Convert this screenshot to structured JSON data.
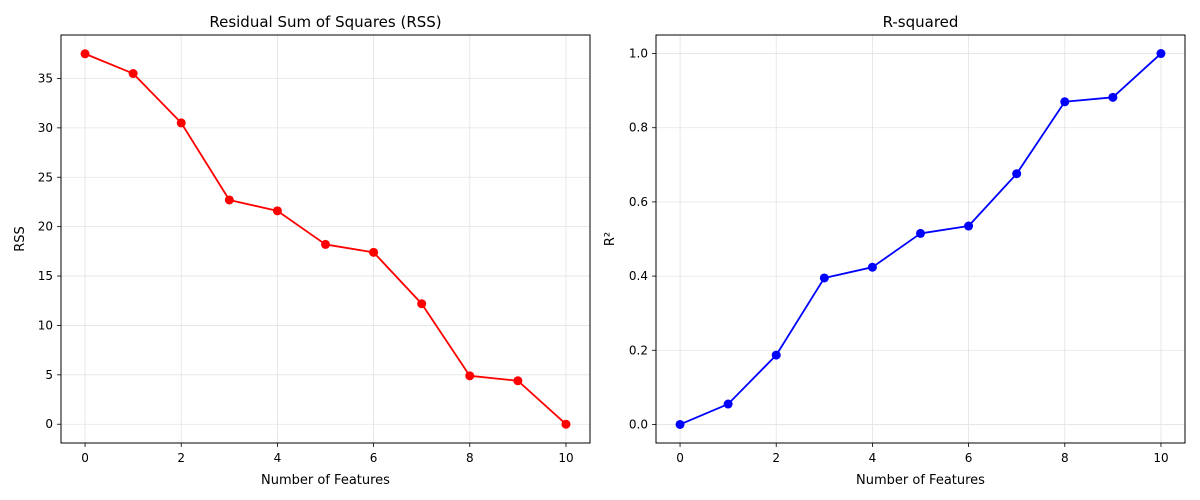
{
  "chart_data": [
    {
      "type": "line",
      "title": "Residual Sum of Squares (RSS)",
      "xlabel": "Number of Features",
      "ylabel": "RSS",
      "x": [
        0,
        1,
        2,
        3,
        4,
        5,
        6,
        7,
        8,
        9,
        10
      ],
      "series": [
        {
          "values": [
            37.5,
            35.5,
            30.5,
            22.7,
            21.6,
            18.2,
            17.4,
            12.2,
            4.9,
            4.4,
            0.0
          ],
          "color": "#ff0000"
        }
      ],
      "xlim": [
        -0.5,
        10.5
      ],
      "ylim": [
        -1.9,
        39.4
      ],
      "xticks": [
        0,
        2,
        4,
        6,
        8,
        10
      ],
      "yticks": [
        0,
        5,
        10,
        15,
        20,
        25,
        30,
        35
      ],
      "grid": true
    },
    {
      "type": "line",
      "title": "R-squared",
      "xlabel": "Number of Features",
      "ylabel": "R²",
      "x": [
        0,
        1,
        2,
        3,
        4,
        5,
        6,
        7,
        8,
        9,
        10
      ],
      "series": [
        {
          "values": [
            0.0,
            0.055,
            0.187,
            0.395,
            0.424,
            0.515,
            0.535,
            0.676,
            0.87,
            0.882,
            1.0
          ],
          "color": "#0000ff"
        }
      ],
      "xlim": [
        -0.5,
        10.5
      ],
      "ylim": [
        -0.05,
        1.05
      ],
      "xticks": [
        0,
        2,
        4,
        6,
        8,
        10
      ],
      "yticks": [
        0.0,
        0.2,
        0.4,
        0.6,
        0.8,
        1.0
      ],
      "grid": true
    }
  ]
}
